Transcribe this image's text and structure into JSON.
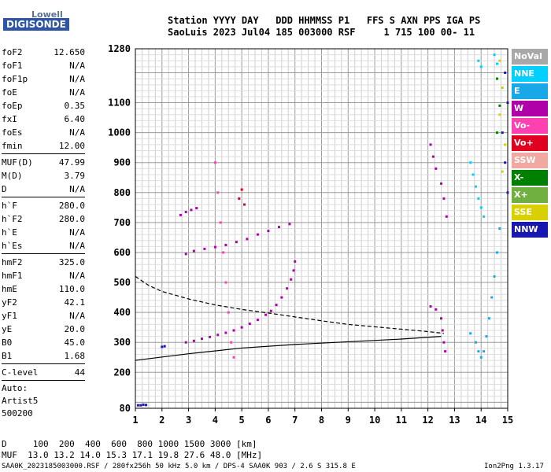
{
  "logo": {
    "line1": "Lowell",
    "line2": "DIGISONDE"
  },
  "header": {
    "line1": "Station YYYY DAY   DDD HHMMSS P1   FFS S AXN PPS IGA PS",
    "line2": "SaoLuis 2023 Jul04 185 003000 RSF     1 715 100 00- 11"
  },
  "params": [
    {
      "group": [
        {
          "name": "foF2",
          "value": "12.650"
        },
        {
          "name": "foF1",
          "value": "N/A"
        },
        {
          "name": "foF1p",
          "value": "N/A"
        },
        {
          "name": "foE",
          "value": "N/A"
        },
        {
          "name": "foEp",
          "value": "0.35"
        },
        {
          "name": "fxI",
          "value": "6.40"
        },
        {
          "name": "foEs",
          "value": "N/A"
        },
        {
          "name": "fmin",
          "value": "12.00"
        }
      ]
    },
    {
      "group": [
        {
          "name": "MUF(D)",
          "value": "47.99"
        },
        {
          "name": "M(D)",
          "value": "3.79"
        },
        {
          "name": "D",
          "value": "N/A"
        }
      ]
    },
    {
      "group": [
        {
          "name": "h`F",
          "value": "280.0"
        },
        {
          "name": "h`F2",
          "value": "280.0"
        },
        {
          "name": "h`E",
          "value": "N/A"
        },
        {
          "name": "h`Es",
          "value": "N/A"
        }
      ]
    },
    {
      "group": [
        {
          "name": "hmF2",
          "value": "325.0"
        },
        {
          "name": "hmF1",
          "value": "N/A"
        },
        {
          "name": "hmE",
          "value": "110.0"
        },
        {
          "name": "yF2",
          "value": "42.1"
        },
        {
          "name": "yF1",
          "value": "N/A"
        },
        {
          "name": "yE",
          "value": "20.0"
        },
        {
          "name": "B0",
          "value": "45.0"
        },
        {
          "name": "B1",
          "value": "1.68"
        }
      ]
    },
    {
      "group": [
        {
          "name": "C-level",
          "value": "44"
        }
      ]
    }
  ],
  "auto": {
    "line1": "Auto:",
    "line2": "Artist5",
    "line3": "500200"
  },
  "legend": [
    {
      "label": "NoVal",
      "color": "#a8a8a8"
    },
    {
      "label": "NNE",
      "color": "#00d0ff"
    },
    {
      "label": "E",
      "color": "#18a8e8"
    },
    {
      "label": "W",
      "color": "#b000a8"
    },
    {
      "label": "Vo-",
      "color": "#ff40b0"
    },
    {
      "label": "Vo+",
      "color": "#e00020"
    },
    {
      "label": "SSW",
      "color": "#f0a8a0"
    },
    {
      "label": "X-",
      "color": "#008000"
    },
    {
      "label": "X+",
      "color": "#70b040"
    },
    {
      "label": "SSE",
      "color": "#d8d000"
    },
    {
      "label": "NNW",
      "color": "#1818b0"
    }
  ],
  "footer": {
    "d_line": "D     100  200  400  600  800 1000 1500 3000 [km]",
    "muf_line": "MUF  13.0 13.2 14.0 15.3 17.1 19.8 27.6 48.0 [MHz]",
    "info_line": "SAA0K_2023185003000.RSF / 280fx256h 50 kHz 5.0 km / DPS-4 SAA0K 903 / 2.6 S 315.8 E",
    "version": "Ion2Png 1.3.17"
  },
  "chart_data": {
    "type": "scatter",
    "xlim": [
      1,
      15
    ],
    "ylim": [
      80,
      1280
    ],
    "xticks": [
      "1",
      "2",
      "3",
      "4",
      "5",
      "6",
      "7",
      "8",
      "9",
      "10",
      "11",
      "12",
      "13",
      "14",
      "15"
    ],
    "yticks": [
      "80",
      "200",
      "300",
      "400",
      "500",
      "600",
      "700",
      "800",
      "900",
      "1000",
      "1100",
      "1280"
    ],
    "grid": true,
    "series": [
      {
        "color": "#b000a8",
        "points": [
          [
            2.9,
            300
          ],
          [
            3.2,
            305
          ],
          [
            3.5,
            312
          ],
          [
            3.8,
            318
          ],
          [
            4.1,
            325
          ],
          [
            4.4,
            332
          ],
          [
            4.7,
            340
          ],
          [
            5.0,
            350
          ],
          [
            5.3,
            362
          ],
          [
            5.6,
            375
          ],
          [
            5.9,
            392
          ],
          [
            6.1,
            405
          ],
          [
            6.3,
            425
          ],
          [
            6.5,
            450
          ],
          [
            6.7,
            480
          ],
          [
            6.85,
            510
          ],
          [
            6.95,
            540
          ],
          [
            7.0,
            570
          ]
        ]
      },
      {
        "color": "#b000a8",
        "points": [
          [
            2.9,
            595
          ],
          [
            3.2,
            605
          ],
          [
            3.6,
            612
          ],
          [
            4.0,
            618
          ],
          [
            4.4,
            625
          ],
          [
            4.8,
            635
          ],
          [
            5.2,
            645
          ],
          [
            5.6,
            660
          ],
          [
            6.0,
            672
          ],
          [
            6.4,
            685
          ],
          [
            6.8,
            695
          ]
        ]
      },
      {
        "color": "#b000a8",
        "points": [
          [
            2.7,
            725
          ],
          [
            2.9,
            735
          ],
          [
            3.1,
            742
          ],
          [
            3.3,
            748
          ]
        ]
      },
      {
        "color": "#b000a8",
        "points": [
          [
            12.1,
            420
          ],
          [
            12.3,
            410
          ],
          [
            12.5,
            380
          ],
          [
            12.55,
            340
          ],
          [
            12.6,
            300
          ],
          [
            12.65,
            270
          ]
        ]
      },
      {
        "color": "#18a8e8",
        "points": [
          [
            13.6,
            330
          ],
          [
            13.8,
            300
          ],
          [
            13.9,
            270
          ],
          [
            14.0,
            250
          ],
          [
            14.1,
            270
          ],
          [
            14.2,
            320
          ],
          [
            14.3,
            380
          ],
          [
            14.4,
            450
          ],
          [
            14.5,
            520
          ],
          [
            14.6,
            600
          ],
          [
            14.7,
            680
          ]
        ]
      },
      {
        "color": "#00d0ff",
        "points": [
          [
            13.6,
            900
          ],
          [
            13.7,
            860
          ],
          [
            13.8,
            820
          ],
          [
            13.9,
            780
          ],
          [
            14.0,
            750
          ],
          [
            14.1,
            720
          ]
        ]
      },
      {
        "color": "#b000a8",
        "points": [
          [
            12.1,
            960
          ],
          [
            12.2,
            920
          ],
          [
            12.3,
            880
          ],
          [
            12.5,
            830
          ],
          [
            12.6,
            780
          ],
          [
            12.7,
            720
          ]
        ]
      },
      {
        "color": "#ff40b0",
        "points": [
          [
            4.0,
            900
          ],
          [
            4.1,
            800
          ],
          [
            4.2,
            700
          ],
          [
            4.3,
            600
          ],
          [
            4.4,
            500
          ],
          [
            4.5,
            400
          ],
          [
            4.6,
            300
          ],
          [
            4.7,
            250
          ]
        ]
      },
      {
        "color": "#e00020",
        "points": [
          [
            4.9,
            780
          ],
          [
            5.0,
            810
          ],
          [
            5.1,
            760
          ]
        ]
      },
      {
        "color": "#1818b0",
        "points": [
          [
            14.9,
            1200
          ],
          [
            15.0,
            1100
          ],
          [
            14.8,
            1000
          ],
          [
            14.9,
            900
          ],
          [
            15.0,
            800
          ]
        ]
      },
      {
        "color": "#d8d000",
        "points": [
          [
            14.7,
            1240
          ],
          [
            14.8,
            1150
          ],
          [
            14.7,
            1060
          ],
          [
            14.9,
            960
          ],
          [
            14.8,
            870
          ]
        ]
      },
      {
        "color": "#008000",
        "points": [
          [
            14.6,
            1180
          ],
          [
            14.7,
            1090
          ],
          [
            14.6,
            1000
          ]
        ]
      },
      {
        "color": "#00d0ff",
        "points": [
          [
            13.9,
            1240
          ],
          [
            14.0,
            1220
          ],
          [
            14.5,
            1260
          ],
          [
            14.6,
            1230
          ]
        ]
      },
      {
        "color": "#1818b0",
        "points": [
          [
            1.1,
            90
          ],
          [
            1.2,
            90
          ],
          [
            1.3,
            92
          ],
          [
            1.4,
            91
          ],
          [
            2.0,
            285
          ],
          [
            2.1,
            287
          ]
        ]
      }
    ],
    "profile_solid": [
      [
        1,
        240
      ],
      [
        3,
        262
      ],
      [
        5,
        281
      ],
      [
        7,
        293
      ],
      [
        9,
        302
      ],
      [
        11,
        311
      ],
      [
        12.5,
        320
      ]
    ],
    "profile_dashed": [
      [
        1,
        520
      ],
      [
        1.5,
        490
      ],
      [
        2,
        470
      ],
      [
        3,
        445
      ],
      [
        4,
        425
      ],
      [
        5,
        410
      ],
      [
        6,
        398
      ],
      [
        7,
        385
      ],
      [
        8,
        372
      ],
      [
        9,
        360
      ],
      [
        10,
        352
      ],
      [
        11,
        344
      ],
      [
        12,
        336
      ],
      [
        12.6,
        330
      ]
    ]
  }
}
